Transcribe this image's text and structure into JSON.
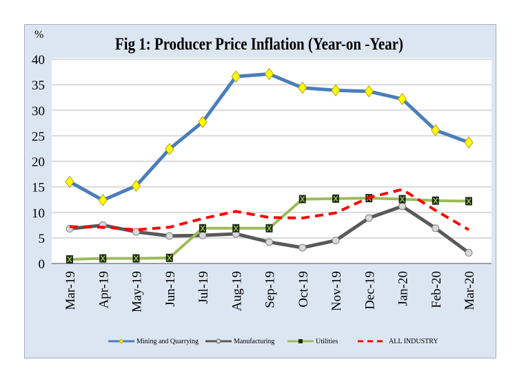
{
  "chart_data": {
    "type": "line",
    "title": "Fig 1: Producer Price Inflation (Year-on -Year)",
    "ylabel": "%",
    "xlabel": "",
    "ylim": [
      0,
      40
    ],
    "yticks": [
      "0",
      "5",
      "10",
      "15",
      "20",
      "25",
      "30",
      "35",
      "40"
    ],
    "grid": true,
    "legend": "bottom",
    "categories": [
      "Mar-19",
      "Apr-19",
      "May-19",
      "Jun-19",
      "Jul-19",
      "Aug-19",
      "Sep-19",
      "Oct-19",
      "Nov-19",
      "Dec-19",
      "Jan-20",
      "Feb-20",
      "Mar-20"
    ],
    "series": [
      {
        "name": "Mining and Quarrying",
        "color": "#4a7ebb",
        "marker": "diamond",
        "values": [
          16.0,
          12.4,
          15.2,
          22.4,
          27.7,
          36.6,
          37.1,
          34.4,
          33.9,
          33.7,
          32.2,
          26.1,
          23.7
        ]
      },
      {
        "name": "Manufacturing",
        "color": "#595959",
        "marker": "circle",
        "values": [
          6.8,
          7.5,
          6.2,
          5.4,
          5.5,
          5.8,
          4.2,
          3.1,
          4.5,
          8.9,
          11.2,
          6.9,
          2.1
        ]
      },
      {
        "name": "Utilities",
        "color": "#9bbb59",
        "marker": "x-square",
        "values": [
          0.8,
          1.0,
          1.0,
          1.1,
          6.9,
          6.9,
          6.9,
          12.6,
          12.7,
          12.8,
          12.6,
          12.3,
          12.2
        ]
      },
      {
        "name": "ALL INDUSTRY",
        "color": "#ff0000",
        "marker": "dashed",
        "values": [
          7.2,
          7.1,
          6.6,
          7.1,
          8.8,
          10.2,
          9.0,
          8.9,
          9.9,
          12.9,
          14.5,
          10.4,
          6.6
        ]
      }
    ]
  }
}
